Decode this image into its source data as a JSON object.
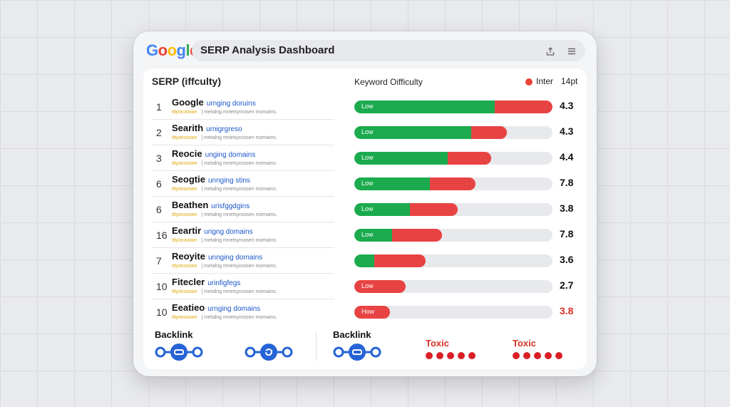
{
  "header": {
    "logo": [
      "G",
      "o",
      "o",
      "g",
      "l",
      "e"
    ],
    "title": "SERP Analysis Dashboard",
    "share_icon": "share-icon",
    "menu_icon": "menu-icon"
  },
  "left": {
    "title": "SERP (iffculty)"
  },
  "right": {
    "title": "Keyword Oifficulty",
    "legend_label": "Inter",
    "legend_size": "14pt"
  },
  "rows": [
    {
      "rank": "1",
      "site": "Google",
      "keyword": "urnging doruins",
      "url": "ittyorusnwn",
      "desc": "| metalng mnetsyrxosen momains.",
      "green": 0.71,
      "red": 0.29,
      "label": "Low",
      "score": "4.3"
    },
    {
      "rank": "2",
      "site": "Searith",
      "keyword": "urnigrgreso",
      "url": "ittyorusnwn",
      "desc": "| metalng mnetsyrxosen momains.",
      "green": 0.59,
      "red": 0.18,
      "label": "Low",
      "score": "4.3"
    },
    {
      "rank": "3",
      "site": "Reocie",
      "keyword": "unging domains",
      "url": "ittyorusnwn",
      "desc": "| metalng mnetsyrxosen momains.",
      "green": 0.47,
      "red": 0.22,
      "label": "Low",
      "score": "4.4"
    },
    {
      "rank": "6",
      "site": "Seogtie",
      "keyword": "unnging stins",
      "url": "ittyorusnwn",
      "desc": "| metalng mnetsyrxosen momains.",
      "green": 0.38,
      "red": 0.23,
      "label": "Low",
      "score": "7.8"
    },
    {
      "rank": "6",
      "site": "Beathen",
      "keyword": "urisfggdgins",
      "url": "ittyorusnwn",
      "desc": "| metalng mnetsyrxosen momains.",
      "green": 0.28,
      "red": 0.24,
      "label": "Low",
      "score": "3.8"
    },
    {
      "rank": "16",
      "site": "Eeartir",
      "keyword": "urigng domains",
      "url": "ittyorusnwn",
      "desc": "| metalng mnetsyrxosen momains.",
      "green": 0.19,
      "red": 0.25,
      "label": "Low",
      "score": "7.8"
    },
    {
      "rank": "7",
      "site": "Reoyite",
      "keyword": "unnging domains",
      "url": "ittyorusnwn",
      "desc": "| metalng mnetsyrxosen momains.",
      "green": 0.1,
      "red": 0.26,
      "label": "",
      "score": "3.6"
    },
    {
      "rank": "10",
      "site": "Fitecler",
      "keyword": "urinfigfegs",
      "url": "ittyorusnwn",
      "desc": "| metalng mnetsyrxosen momains.",
      "green": 0.0,
      "red": 0.26,
      "label": "Low",
      "score": "2.7"
    },
    {
      "rank": "10",
      "site": "Eeatieo",
      "keyword": "urnging domains",
      "url": "ittyorusnwn",
      "desc": "| metalng mnetsyrxosen momains.",
      "green": 0.0,
      "red": 0.18,
      "label": "How",
      "score": "3.8",
      "alert": true
    }
  ],
  "footer": {
    "backlink_left": "Backlink",
    "backlink_right": "Backlink",
    "toxic_1": "Toxic",
    "toxic_2": "Toxic",
    "chain_icon": "link-chain-icon",
    "toxic_dot_count": 5
  },
  "colors": {
    "low": "#1bab4e",
    "high": "#e84343",
    "link": "#1a56c9",
    "chain": "#2563d6",
    "toxic": "#d91f26"
  }
}
